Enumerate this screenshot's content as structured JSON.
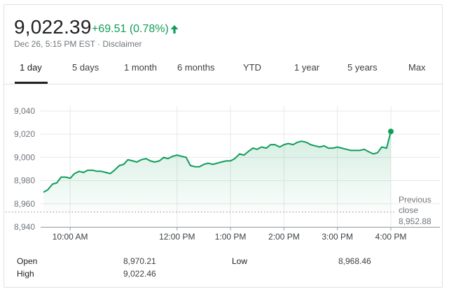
{
  "quote": {
    "price": "9,022.39",
    "change": "+69.51 (0.78%)",
    "timestamp": "Dec 26, 5:15 PM EST",
    "separator": " · ",
    "disclaimer": "Disclaimer",
    "up_color": "#0f9d58"
  },
  "tabs": [
    "1 day",
    "5 days",
    "1 month",
    "6 months",
    "YTD",
    "1 year",
    "5 years",
    "Max"
  ],
  "active_tab": "1 day",
  "prev_close": {
    "label_line1": "Previous",
    "label_line2": "close",
    "value_text": "8,952.88"
  },
  "stats": {
    "open_label": "Open",
    "open_value": "8,970.21",
    "high_label": "High",
    "high_value": "9,022.46",
    "low_label": "Low",
    "low_value": "8,968.46"
  },
  "chart_data": {
    "type": "area",
    "title": "",
    "xlabel": "",
    "ylabel": "",
    "ylim": [
      8940,
      9045
    ],
    "yticks": [
      8940,
      8960,
      8980,
      9000,
      9020,
      9040
    ],
    "ytick_labels": [
      "8,940",
      "8,960",
      "8,980",
      "9,000",
      "9,020",
      "9,040"
    ],
    "xticks": [
      "10:00 AM",
      "12:00 PM",
      "1:00 PM",
      "2:00 PM",
      "3:00 PM",
      "4:00 PM"
    ],
    "xtick_hours": [
      10,
      12,
      13,
      14,
      15,
      16
    ],
    "x_range_hours": [
      9.5,
      16.0
    ],
    "previous_close": 8952.88,
    "line_color": "#0f9d58",
    "grid": true,
    "series": [
      {
        "x": [
          9.5,
          9.58,
          9.67,
          9.75,
          9.83,
          9.92,
          10.0,
          10.08,
          10.17,
          10.25,
          10.33,
          10.42,
          10.5,
          10.58,
          10.67,
          10.75,
          10.83,
          10.92,
          11.0,
          11.08,
          11.17,
          11.25,
          11.33,
          11.42,
          11.5,
          11.58,
          11.67,
          11.75,
          11.83,
          11.92,
          12.0,
          12.08,
          12.17,
          12.25,
          12.33,
          12.42,
          12.5,
          12.58,
          12.67,
          12.75,
          12.83,
          12.92,
          13.0,
          13.08,
          13.17,
          13.25,
          13.33,
          13.42,
          13.5,
          13.58,
          13.67,
          13.75,
          13.83,
          13.92,
          14.0,
          14.08,
          14.17,
          14.25,
          14.33,
          14.42,
          14.5,
          14.58,
          14.67,
          14.75,
          14.83,
          14.92,
          15.0,
          15.08,
          15.17,
          15.25,
          15.33,
          15.42,
          15.5,
          15.58,
          15.67,
          15.75,
          15.83,
          15.92,
          16.0
        ],
        "y": [
          8970,
          8972,
          8977,
          8978,
          8983,
          8983,
          8982,
          8986,
          8988,
          8987,
          8989,
          8989,
          8988,
          8988,
          8987,
          8986,
          8989,
          8993,
          8994,
          8998,
          8997,
          8996,
          8998,
          8999,
          8997,
          8996,
          8997,
          9000,
          8999,
          9001,
          9002,
          9001,
          9000,
          8993,
          8992,
          8992,
          8994,
          8995,
          8994,
          8995,
          8996,
          8997,
          8997,
          8999,
          9003,
          9002,
          9005,
          9008,
          9007,
          9009,
          9008,
          9011,
          9011,
          9009,
          9011,
          9012,
          9011,
          9013,
          9014,
          9013,
          9011,
          9010,
          9009,
          9010,
          9008,
          9008,
          9009,
          9008,
          9007,
          9006,
          9006,
          9006,
          9007,
          9005,
          9003,
          9004,
          9009,
          9008,
          9022.39
        ]
      }
    ]
  }
}
